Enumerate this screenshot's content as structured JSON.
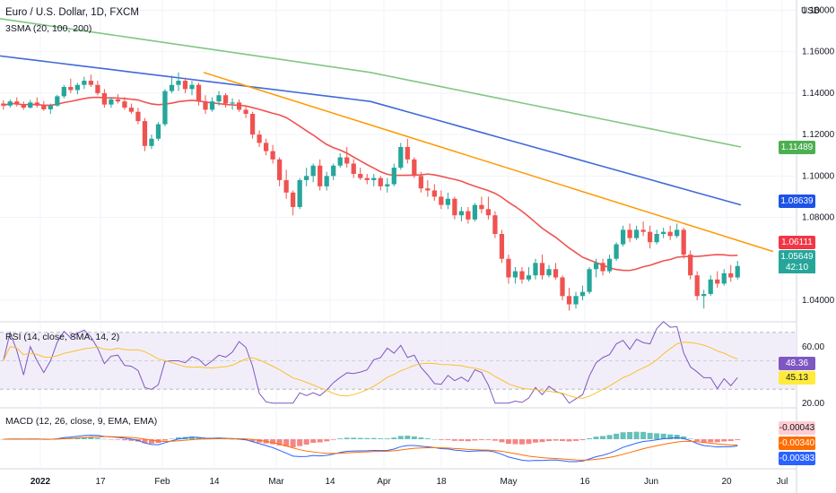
{
  "header": {
    "title": "Euro / U.S. Dollar, 1D, FXCM",
    "indicator": "3SMA (20, 100, 200)",
    "currency": "USD"
  },
  "rsi_panel": {
    "label": "RSI (14, close, SMA, 14, 2)"
  },
  "macd_panel": {
    "label": "MACD (12, 26, close, 9, EMA, EMA)"
  },
  "price_tags": [
    {
      "value": "1.11489",
      "color": "#4caf50"
    },
    {
      "value": "1.08639",
      "color": "#1e53e5"
    },
    {
      "value": "1.06111",
      "color": "#f23645"
    },
    {
      "value": "1.05649",
      "color": "#26a69a"
    }
  ],
  "countdown": "42:10",
  "rsi_tags": [
    {
      "value": "48.36",
      "color": "#7e57c2"
    },
    {
      "value": "45.13",
      "color": "#ffeb3b"
    }
  ],
  "macd_tags": [
    {
      "value": "-0.00043",
      "color": "#ffcdd2"
    },
    {
      "value": "-0.00340",
      "color": "#ff6d00"
    },
    {
      "value": "-0.00383",
      "color": "#2962ff"
    }
  ],
  "chart_data": {
    "type": "candlestick",
    "price_axis": {
      "ticks": [
        "1.18000",
        "1.16000",
        "1.14000",
        "1.12000",
        "1.10000",
        "1.08000",
        "1.04000"
      ],
      "ylim": [
        1.03,
        1.185
      ]
    },
    "time_axis": [
      "2022",
      "17",
      "Feb",
      "14",
      "Mar",
      "14",
      "Apr",
      "18",
      "May",
      "16",
      "Jun",
      "20",
      "Jul"
    ],
    "rsi_axis": [
      "60.00",
      "20.00"
    ],
    "colors": {
      "up": "#26a69a",
      "down": "#ef5350",
      "sma20": "#ef5350",
      "sma100": "#3f6ad8",
      "sma200": "#81c784",
      "trendline": "#ff9800",
      "rsi": "#7e57c2",
      "rsi_ma": "#fbc02d",
      "macd": "#2962ff",
      "signal": "#ff6d00"
    },
    "candles": [
      [
        1.135,
        1.1365,
        1.132,
        1.134
      ],
      [
        1.134,
        1.137,
        1.133,
        1.136
      ],
      [
        1.136,
        1.138,
        1.1335,
        1.1345
      ],
      [
        1.1345,
        1.136,
        1.132,
        1.133
      ],
      [
        1.133,
        1.1368,
        1.1325,
        1.1355
      ],
      [
        1.1355,
        1.138,
        1.133,
        1.134
      ],
      [
        1.134,
        1.1362,
        1.1315,
        1.1322
      ],
      [
        1.1322,
        1.135,
        1.13,
        1.134
      ],
      [
        1.134,
        1.1392,
        1.1335,
        1.1385
      ],
      [
        1.1385,
        1.144,
        1.1375,
        1.143
      ],
      [
        1.143,
        1.147,
        1.14,
        1.1415
      ],
      [
        1.1415,
        1.145,
        1.1395,
        1.144
      ],
      [
        1.144,
        1.148,
        1.142,
        1.146
      ],
      [
        1.146,
        1.149,
        1.143,
        1.144
      ],
      [
        1.144,
        1.146,
        1.139,
        1.14
      ],
      [
        1.14,
        1.142,
        1.133,
        1.1345
      ],
      [
        1.1345,
        1.138,
        1.133,
        1.137
      ],
      [
        1.137,
        1.1395,
        1.135,
        1.136
      ],
      [
        1.136,
        1.138,
        1.132,
        1.133
      ],
      [
        1.133,
        1.135,
        1.13,
        1.131
      ],
      [
        1.131,
        1.133,
        1.125,
        1.1265
      ],
      [
        1.1265,
        1.128,
        1.112,
        1.1145
      ],
      [
        1.1145,
        1.12,
        1.113,
        1.118
      ],
      [
        1.118,
        1.126,
        1.117,
        1.125
      ],
      [
        1.125,
        1.142,
        1.124,
        1.141
      ],
      [
        1.141,
        1.1485,
        1.14,
        1.144
      ],
      [
        1.144,
        1.15,
        1.141,
        1.146
      ],
      [
        1.146,
        1.1475,
        1.14,
        1.142
      ],
      [
        1.142,
        1.146,
        1.139,
        1.144
      ],
      [
        1.144,
        1.145,
        1.134,
        1.136
      ],
      [
        1.136,
        1.139,
        1.13,
        1.132
      ],
      [
        1.132,
        1.138,
        1.131,
        1.136
      ],
      [
        1.136,
        1.141,
        1.134,
        1.139
      ],
      [
        1.139,
        1.14,
        1.133,
        1.135
      ],
      [
        1.135,
        1.1375,
        1.132,
        1.1355
      ],
      [
        1.1355,
        1.137,
        1.131,
        1.132
      ],
      [
        1.132,
        1.134,
        1.128,
        1.13
      ],
      [
        1.13,
        1.131,
        1.118,
        1.12
      ],
      [
        1.12,
        1.122,
        1.114,
        1.116
      ],
      [
        1.116,
        1.118,
        1.11,
        1.112
      ],
      [
        1.112,
        1.115,
        1.106,
        1.108
      ],
      [
        1.108,
        1.109,
        1.095,
        1.098
      ],
      [
        1.098,
        1.103,
        1.089,
        1.092
      ],
      [
        1.092,
        1.093,
        1.081,
        1.085
      ],
      [
        1.085,
        1.099,
        1.084,
        1.098
      ],
      [
        1.098,
        1.104,
        1.095,
        1.1
      ],
      [
        1.1,
        1.106,
        1.097,
        1.105
      ],
      [
        1.105,
        1.108,
        1.093,
        1.095
      ],
      [
        1.095,
        1.102,
        1.093,
        1.1
      ],
      [
        1.1,
        1.106,
        1.098,
        1.105
      ],
      [
        1.105,
        1.111,
        1.104,
        1.109
      ],
      [
        1.109,
        1.114,
        1.104,
        1.106
      ],
      [
        1.106,
        1.108,
        1.099,
        1.101
      ],
      [
        1.101,
        1.104,
        1.098,
        1.099
      ],
      [
        1.099,
        1.101,
        1.096,
        1.098
      ],
      [
        1.098,
        1.101,
        1.095,
        1.099
      ],
      [
        1.099,
        1.1,
        1.093,
        1.095
      ],
      [
        1.095,
        1.099,
        1.092,
        1.096
      ],
      [
        1.096,
        1.106,
        1.095,
        1.104
      ],
      [
        1.104,
        1.116,
        1.103,
        1.114
      ],
      [
        1.114,
        1.118,
        1.106,
        1.108
      ],
      [
        1.108,
        1.109,
        1.099,
        1.1
      ],
      [
        1.1,
        1.102,
        1.092,
        1.094
      ],
      [
        1.094,
        1.098,
        1.09,
        1.093
      ],
      [
        1.093,
        1.096,
        1.088,
        1.09
      ],
      [
        1.09,
        1.093,
        1.084,
        1.086
      ],
      [
        1.086,
        1.092,
        1.084,
        1.089
      ],
      [
        1.089,
        1.09,
        1.079,
        1.081
      ],
      [
        1.081,
        1.085,
        1.078,
        1.083
      ],
      [
        1.083,
        1.085,
        1.077,
        1.079
      ],
      [
        1.079,
        1.087,
        1.078,
        1.086
      ],
      [
        1.086,
        1.09,
        1.082,
        1.084
      ],
      [
        1.084,
        1.09,
        1.079,
        1.081
      ],
      [
        1.081,
        1.083,
        1.07,
        1.072
      ],
      [
        1.072,
        1.074,
        1.058,
        1.06
      ],
      [
        1.06,
        1.062,
        1.048,
        1.051
      ],
      [
        1.051,
        1.056,
        1.048,
        1.054
      ],
      [
        1.054,
        1.056,
        1.048,
        1.05
      ],
      [
        1.05,
        1.056,
        1.049,
        1.052
      ],
      [
        1.052,
        1.06,
        1.05,
        1.058
      ],
      [
        1.058,
        1.062,
        1.05,
        1.052
      ],
      [
        1.052,
        1.057,
        1.051,
        1.055
      ],
      [
        1.055,
        1.058,
        1.05,
        1.051
      ],
      [
        1.051,
        1.052,
        1.04,
        1.042
      ],
      [
        1.042,
        1.046,
        1.035,
        1.038
      ],
      [
        1.038,
        1.044,
        1.036,
        1.042
      ],
      [
        1.042,
        1.047,
        1.04,
        1.044
      ],
      [
        1.044,
        1.056,
        1.043,
        1.055
      ],
      [
        1.055,
        1.06,
        1.051,
        1.058
      ],
      [
        1.058,
        1.06,
        1.052,
        1.054
      ],
      [
        1.054,
        1.062,
        1.053,
        1.06
      ],
      [
        1.06,
        1.068,
        1.059,
        1.067
      ],
      [
        1.067,
        1.076,
        1.066,
        1.074
      ],
      [
        1.074,
        1.077,
        1.068,
        1.07
      ],
      [
        1.07,
        1.076,
        1.069,
        1.074
      ],
      [
        1.074,
        1.078,
        1.071,
        1.073
      ],
      [
        1.073,
        1.076,
        1.065,
        1.068
      ],
      [
        1.068,
        1.074,
        1.067,
        1.072
      ],
      [
        1.072,
        1.075,
        1.07,
        1.073
      ],
      [
        1.073,
        1.076,
        1.069,
        1.071
      ],
      [
        1.071,
        1.077,
        1.07,
        1.074
      ],
      [
        1.074,
        1.075,
        1.06,
        1.062
      ],
      [
        1.062,
        1.064,
        1.05,
        1.052
      ],
      [
        1.052,
        1.054,
        1.04,
        1.042
      ],
      [
        1.042,
        1.045,
        1.036,
        1.043
      ],
      [
        1.043,
        1.052,
        1.042,
        1.05
      ],
      [
        1.05,
        1.054,
        1.046,
        1.048
      ],
      [
        1.048,
        1.055,
        1.047,
        1.053
      ],
      [
        1.053,
        1.057,
        1.049,
        1.051
      ],
      [
        1.051,
        1.059,
        1.05,
        1.0565
      ]
    ],
    "sma200": [
      1.176,
      1.15,
      1.114
    ],
    "sma100": [
      1.158,
      1.136,
      1.086
    ],
    "trendline": [
      1.15,
      1.0635
    ]
  }
}
